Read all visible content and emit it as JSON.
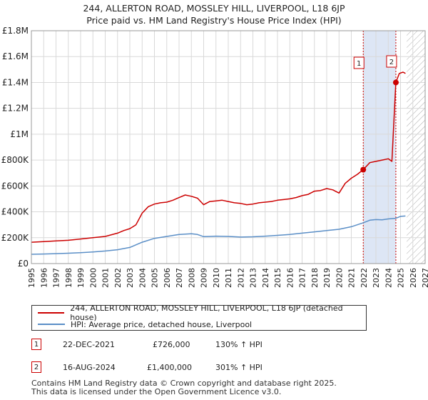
{
  "titles": {
    "line1": "244, ALLERTON ROAD, MOSSLEY HILL, LIVERPOOL, L18 6JP",
    "line2": "Price paid vs. HM Land Registry's House Price Index (HPI)"
  },
  "colors": {
    "price_line": "#cc0000",
    "hpi_line": "#5b8fc7",
    "grid": "#d9d9d9",
    "highlight": "#dde6f5",
    "marker_border": "#cc0000"
  },
  "legend": {
    "price_label": "244, ALLERTON ROAD, MOSSLEY HILL, LIVERPOOL, L18 6JP (detached house)",
    "hpi_label": "HPI: Average price, detached house, Liverpool"
  },
  "sales": [
    {
      "marker": "1",
      "date": "22-DEC-2021",
      "price": "£726,000",
      "hpi_change": "130% ↑ HPI"
    },
    {
      "marker": "2",
      "date": "16-AUG-2024",
      "price": "£1,400,000",
      "hpi_change": "301% ↑ HPI"
    }
  ],
  "footer": {
    "line1": "Contains HM Land Registry data © Crown copyright and database right 2025.",
    "line2": "This data is licensed under the Open Government Licence v3.0."
  },
  "chart_data": {
    "type": "line",
    "title": "244, ALLERTON ROAD, MOSSLEY HILL, LIVERPOOL, L18 6JP",
    "subtitle": "Price paid vs. HM Land Registry's House Price Index (HPI)",
    "xlim": [
      1995,
      2027
    ],
    "ylim": [
      0,
      1800000
    ],
    "x_ticks": [
      1995,
      1996,
      1997,
      1998,
      1999,
      2000,
      2001,
      2002,
      2003,
      2004,
      2005,
      2006,
      2007,
      2008,
      2009,
      2010,
      2011,
      2012,
      2013,
      2014,
      2015,
      2016,
      2017,
      2018,
      2019,
      2020,
      2021,
      2022,
      2023,
      2024,
      2025,
      2026,
      2027
    ],
    "y_ticks": [
      {
        "value": 0,
        "label": "£0"
      },
      {
        "value": 200000,
        "label": "£200K"
      },
      {
        "value": 400000,
        "label": "£400K"
      },
      {
        "value": 600000,
        "label": "£600K"
      },
      {
        "value": 800000,
        "label": "£800K"
      },
      {
        "value": 1000000,
        "label": "£1M"
      },
      {
        "value": 1200000,
        "label": "£1.2M"
      },
      {
        "value": 1400000,
        "label": "£1.4M"
      },
      {
        "value": 1600000,
        "label": "£1.6M"
      },
      {
        "value": 1800000,
        "label": "£1.8M"
      }
    ],
    "grid": true,
    "highlight_range": [
      2021.97,
      2024.62
    ],
    "future_hatch_start": 2025.5,
    "series": [
      {
        "name": "244, ALLERTON ROAD, MOSSLEY HILL, LIVERPOOL, L18 6JP (detached house)",
        "x": [
          1995,
          1996,
          1997,
          1998,
          1999,
          2000,
          2001,
          2002,
          2002.5,
          2003,
          2003.5,
          2004,
          2004.5,
          2005,
          2005.5,
          2006,
          2006.5,
          2007,
          2007.5,
          2008,
          2008.5,
          2009,
          2009.5,
          2010,
          2010.5,
          2011,
          2011.5,
          2012,
          2012.5,
          2013,
          2013.5,
          2014,
          2014.5,
          2015,
          2015.5,
          2016,
          2016.5,
          2017,
          2017.5,
          2018,
          2018.5,
          2019,
          2019.5,
          2020,
          2020.5,
          2021,
          2021.5,
          2021.97,
          2022.5,
          2023,
          2023.5,
          2024,
          2024.3,
          2024.62,
          2024.9,
          2025.2,
          2025.4
        ],
        "values": [
          165000,
          170000,
          175000,
          180000,
          190000,
          200000,
          210000,
          235000,
          255000,
          270000,
          300000,
          390000,
          440000,
          460000,
          470000,
          475000,
          490000,
          510000,
          530000,
          520000,
          505000,
          455000,
          480000,
          485000,
          490000,
          480000,
          470000,
          465000,
          455000,
          460000,
          470000,
          475000,
          480000,
          490000,
          495000,
          500000,
          510000,
          525000,
          535000,
          560000,
          565000,
          580000,
          570000,
          545000,
          620000,
          660000,
          690000,
          726000,
          780000,
          790000,
          800000,
          810000,
          790000,
          1400000,
          1470000,
          1480000,
          1470000
        ]
      },
      {
        "name": "HPI: Average price, detached house, Liverpool",
        "x": [
          1995,
          1996,
          1997,
          1998,
          1999,
          2000,
          2001,
          2002,
          2003,
          2004,
          2005,
          2006,
          2007,
          2008,
          2008.5,
          2009,
          2009.5,
          2010,
          2011,
          2012,
          2013,
          2014,
          2015,
          2016,
          2017,
          2018,
          2019,
          2020,
          2021,
          2021.97,
          2022.5,
          2023,
          2023.5,
          2024,
          2024.62,
          2025,
          2025.4
        ],
        "values": [
          72000,
          74000,
          77000,
          80000,
          84000,
          90000,
          97000,
          107000,
          125000,
          165000,
          195000,
          210000,
          225000,
          230000,
          225000,
          208000,
          210000,
          212000,
          210000,
          205000,
          207000,
          212000,
          218000,
          225000,
          235000,
          245000,
          255000,
          265000,
          285000,
          315000,
          335000,
          340000,
          338000,
          345000,
          350000,
          365000,
          368000
        ]
      }
    ],
    "sale_points": [
      {
        "marker": "1",
        "x": 2021.97,
        "value": 726000
      },
      {
        "marker": "2",
        "x": 2024.62,
        "value": 1400000
      }
    ]
  }
}
